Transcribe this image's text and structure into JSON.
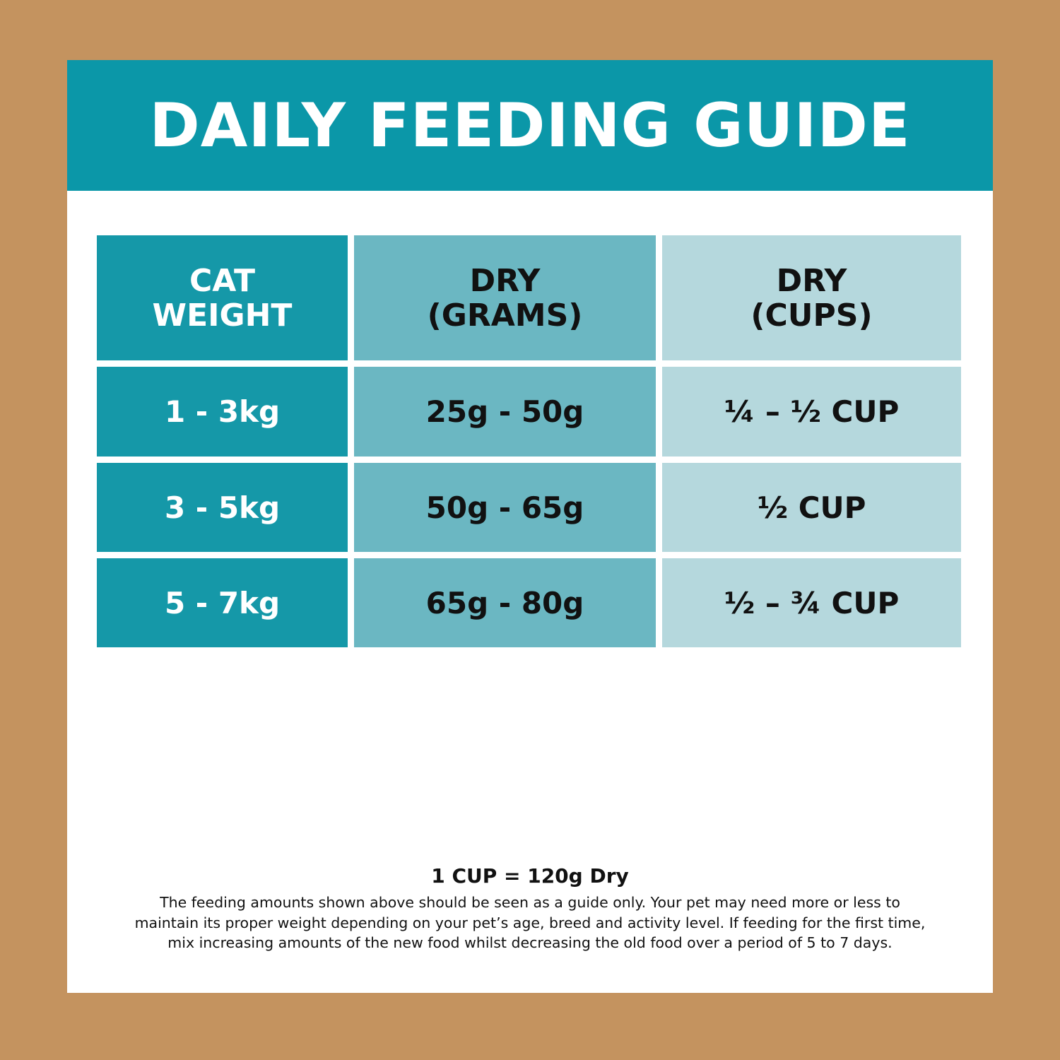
{
  "title": "DAILY FEEDING GUIDE",
  "table": {
    "headers": [
      [
        "CAT",
        "WEIGHT"
      ],
      [
        "DRY",
        "(GRAMS)"
      ],
      [
        "DRY",
        "(CUPS)"
      ]
    ],
    "rows": [
      [
        "1 - 3kg",
        "25g - 50g",
        "¼ – ½ CUP"
      ],
      [
        "3 - 5kg",
        "50g - 65g",
        "½ CUP"
      ],
      [
        "5 - 7kg",
        "65g - 80g",
        "½ – ¾ CUP"
      ]
    ]
  },
  "footer": {
    "conversion": "1 CUP = 120g Dry",
    "note_lines": [
      "The feeding amounts shown above should be seen as a guide only. Your pet may need more or less to",
      "maintain its proper weight depending on your pet’s age, breed and activity level. If feeding for the first time,",
      "mix increasing amounts of the new food whilst decreasing the old food over a period of 5 to 7 days."
    ]
  },
  "colors": {
    "background": "#c4935f",
    "header": "#0b97a8",
    "col1": "#1598a8",
    "col2": "#6bb7c2",
    "col3": "#b5d8dd"
  }
}
